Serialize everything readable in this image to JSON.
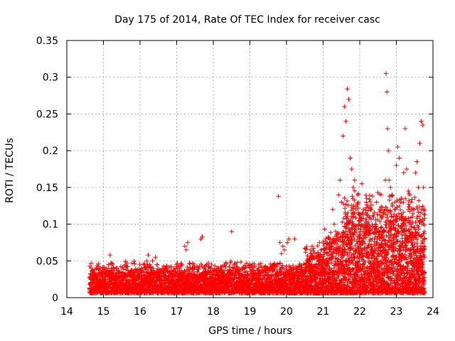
{
  "chart_data": {
    "type": "scatter",
    "title": "Day 175 of 2014, Rate Of TEC Index for receiver casc",
    "xlabel": "GPS time / hours",
    "ylabel": "ROTI / TECUs",
    "xlim": [
      14,
      24
    ],
    "ylim": [
      0,
      0.35
    ],
    "x_ticks": [
      14,
      15,
      16,
      17,
      18,
      19,
      20,
      21,
      22,
      23,
      24
    ],
    "x_tick_labels": [
      "14",
      "15",
      "16",
      "17",
      "18",
      "19",
      "20",
      "21",
      "22",
      "23",
      "24"
    ],
    "y_ticks": [
      0,
      0.05,
      0.1,
      0.15,
      0.2,
      0.25,
      0.3,
      0.35
    ],
    "y_tick_labels": [
      "0",
      "0.05",
      "0.1",
      "0.15",
      "0.2",
      "0.25",
      "0.3",
      "0.35"
    ],
    "grid": true,
    "marker": "plus",
    "color": "#ff0000",
    "series": [
      {
        "name": "ROTI",
        "points": [
          [
            14.62,
            0.012
          ],
          [
            14.66,
            0.018
          ],
          [
            14.7,
            0.025
          ],
          [
            14.74,
            0.03
          ],
          [
            14.78,
            0.022
          ],
          [
            14.82,
            0.04
          ],
          [
            14.86,
            0.046
          ],
          [
            14.9,
            0.03
          ],
          [
            14.94,
            0.02
          ],
          [
            14.98,
            0.015
          ],
          [
            15.02,
            0.025
          ],
          [
            15.06,
            0.035
          ],
          [
            15.1,
            0.02
          ],
          [
            15.14,
            0.045
          ],
          [
            15.18,
            0.058
          ],
          [
            15.22,
            0.04
          ],
          [
            15.26,
            0.03
          ],
          [
            15.3,
            0.02
          ],
          [
            15.34,
            0.015
          ],
          [
            15.38,
            0.012
          ],
          [
            15.42,
            0.01
          ],
          [
            15.46,
            0.02
          ],
          [
            15.5,
            0.018
          ],
          [
            15.54,
            0.025
          ],
          [
            15.58,
            0.03
          ],
          [
            15.62,
            0.016
          ],
          [
            15.66,
            0.012
          ],
          [
            15.7,
            0.02
          ],
          [
            15.74,
            0.015
          ],
          [
            15.78,
            0.01
          ],
          [
            15.82,
            0.012
          ],
          [
            15.86,
            0.018
          ],
          [
            15.9,
            0.025
          ],
          [
            15.94,
            0.03
          ],
          [
            15.98,
            0.028
          ],
          [
            16.02,
            0.025
          ],
          [
            16.06,
            0.038
          ],
          [
            16.1,
            0.045
          ],
          [
            16.14,
            0.03
          ],
          [
            16.18,
            0.05
          ],
          [
            16.22,
            0.058
          ],
          [
            16.26,
            0.045
          ],
          [
            16.3,
            0.04
          ],
          [
            16.34,
            0.05
          ],
          [
            16.38,
            0.035
          ],
          [
            16.42,
            0.055
          ],
          [
            16.46,
            0.045
          ],
          [
            16.5,
            0.03
          ],
          [
            16.54,
            0.025
          ],
          [
            16.58,
            0.035
          ],
          [
            16.62,
            0.04
          ],
          [
            16.66,
            0.03
          ],
          [
            16.7,
            0.02
          ],
          [
            16.74,
            0.025
          ],
          [
            16.78,
            0.03
          ],
          [
            16.82,
            0.035
          ],
          [
            16.86,
            0.02
          ],
          [
            16.9,
            0.015
          ],
          [
            16.94,
            0.02
          ],
          [
            16.98,
            0.025
          ],
          [
            17.02,
            0.03
          ],
          [
            17.06,
            0.02
          ],
          [
            17.1,
            0.015
          ],
          [
            17.14,
            0.02
          ],
          [
            17.18,
            0.025
          ],
          [
            17.22,
            0.07
          ],
          [
            17.26,
            0.065
          ],
          [
            17.3,
            0.075
          ],
          [
            17.34,
            0.03
          ],
          [
            17.38,
            0.028
          ],
          [
            17.42,
            0.035
          ],
          [
            17.46,
            0.025
          ],
          [
            17.5,
            0.03
          ],
          [
            17.54,
            0.02
          ],
          [
            17.58,
            0.015
          ],
          [
            17.62,
            0.025
          ],
          [
            17.66,
            0.08
          ],
          [
            17.7,
            0.083
          ],
          [
            17.74,
            0.04
          ],
          [
            17.78,
            0.03
          ],
          [
            17.82,
            0.045
          ],
          [
            17.86,
            0.035
          ],
          [
            17.9,
            0.025
          ],
          [
            17.94,
            0.02
          ],
          [
            17.98,
            0.015
          ],
          [
            18.02,
            0.02
          ],
          [
            18.06,
            0.025
          ],
          [
            18.1,
            0.03
          ],
          [
            18.14,
            0.02
          ],
          [
            18.18,
            0.015
          ],
          [
            18.22,
            0.025
          ],
          [
            18.26,
            0.032
          ],
          [
            18.3,
            0.03
          ],
          [
            18.34,
            0.02
          ],
          [
            18.38,
            0.015
          ],
          [
            18.42,
            0.01
          ],
          [
            18.46,
            0.02
          ],
          [
            18.5,
            0.09
          ],
          [
            18.54,
            0.025
          ],
          [
            18.58,
            0.03
          ],
          [
            18.62,
            0.02
          ],
          [
            18.66,
            0.015
          ],
          [
            18.7,
            0.028
          ],
          [
            18.74,
            0.03
          ],
          [
            18.78,
            0.02
          ],
          [
            18.82,
            0.01
          ],
          [
            18.86,
            0.015
          ],
          [
            18.9,
            0.025
          ],
          [
            18.94,
            0.03
          ],
          [
            18.98,
            0.02
          ],
          [
            19.02,
            0.015
          ],
          [
            19.06,
            0.01
          ],
          [
            19.1,
            0.012
          ],
          [
            19.14,
            0.018
          ],
          [
            19.18,
            0.025
          ],
          [
            19.22,
            0.02
          ],
          [
            19.26,
            0.015
          ],
          [
            19.3,
            0.01
          ],
          [
            19.34,
            0.02
          ],
          [
            19.38,
            0.035
          ],
          [
            19.42,
            0.042
          ],
          [
            19.46,
            0.03
          ],
          [
            19.5,
            0.025
          ],
          [
            19.54,
            0.02
          ],
          [
            19.58,
            0.03
          ],
          [
            19.62,
            0.035
          ],
          [
            19.66,
            0.025
          ],
          [
            19.7,
            0.02
          ],
          [
            19.74,
            0.03
          ],
          [
            19.78,
            0.138
          ],
          [
            19.82,
            0.075
          ],
          [
            19.86,
            0.06
          ],
          [
            19.9,
            0.07
          ],
          [
            19.94,
            0.065
          ],
          [
            19.98,
            0.03
          ],
          [
            20.02,
            0.075
          ],
          [
            20.06,
            0.08
          ],
          [
            20.1,
            0.025
          ],
          [
            20.14,
            0.03
          ],
          [
            20.18,
            0.02
          ],
          [
            20.22,
            0.08
          ],
          [
            20.26,
            0.035
          ],
          [
            20.3,
            0.03
          ],
          [
            20.34,
            0.025
          ],
          [
            20.38,
            0.02
          ],
          [
            20.42,
            0.03
          ],
          [
            20.46,
            0.035
          ],
          [
            20.5,
            0.045
          ],
          [
            20.54,
            0.04
          ],
          [
            20.58,
            0.03
          ],
          [
            20.62,
            0.05
          ],
          [
            20.66,
            0.065
          ],
          [
            20.7,
            0.07
          ],
          [
            20.74,
            0.055
          ],
          [
            20.78,
            0.045
          ],
          [
            20.82,
            0.04
          ],
          [
            20.86,
            0.06
          ],
          [
            20.9,
            0.075
          ],
          [
            20.94,
            0.065
          ],
          [
            20.98,
            0.05
          ],
          [
            21.02,
            0.04
          ],
          [
            21.06,
            0.045
          ],
          [
            21.1,
            0.06
          ],
          [
            21.14,
            0.05
          ],
          [
            21.18,
            0.07
          ],
          [
            21.22,
            0.075
          ],
          [
            21.26,
            0.12
          ],
          [
            21.3,
            0.1
          ],
          [
            21.34,
            0.09
          ],
          [
            21.38,
            0.065
          ],
          [
            21.42,
            0.14
          ],
          [
            21.46,
            0.16
          ],
          [
            21.5,
            0.13
          ],
          [
            21.54,
            0.22
          ],
          [
            21.58,
            0.26
          ],
          [
            21.62,
            0.24
          ],
          [
            21.66,
            0.284
          ],
          [
            21.7,
            0.27
          ],
          [
            21.74,
            0.19
          ],
          [
            21.78,
            0.175
          ],
          [
            21.82,
            0.15
          ],
          [
            21.86,
            0.16
          ],
          [
            21.9,
            0.12
          ],
          [
            21.94,
            0.14
          ],
          [
            21.98,
            0.1
          ],
          [
            22.02,
            0.09
          ],
          [
            22.06,
            0.155
          ],
          [
            22.1,
            0.12
          ],
          [
            22.14,
            0.1
          ],
          [
            22.18,
            0.13
          ],
          [
            22.22,
            0.1
          ],
          [
            22.26,
            0.09
          ],
          [
            22.3,
            0.12
          ],
          [
            22.34,
            0.08
          ],
          [
            22.38,
            0.11
          ],
          [
            22.42,
            0.1
          ],
          [
            22.46,
            0.13
          ],
          [
            22.5,
            0.09
          ],
          [
            22.54,
            0.12
          ],
          [
            22.58,
            0.14
          ],
          [
            22.62,
            0.11
          ],
          [
            22.66,
            0.12
          ],
          [
            22.7,
            0.16
          ],
          [
            22.72,
            0.305
          ],
          [
            22.74,
            0.28
          ],
          [
            22.76,
            0.23
          ],
          [
            22.78,
            0.2
          ],
          [
            22.8,
            0.16
          ],
          [
            22.84,
            0.15
          ],
          [
            22.88,
            0.14
          ],
          [
            22.92,
            0.1
          ],
          [
            22.96,
            0.12
          ],
          [
            23.0,
            0.18
          ],
          [
            23.04,
            0.205
          ],
          [
            23.08,
            0.19
          ],
          [
            23.12,
            0.13
          ],
          [
            23.16,
            0.11
          ],
          [
            23.2,
            0.17
          ],
          [
            23.24,
            0.23
          ],
          [
            23.28,
            0.175
          ],
          [
            23.32,
            0.12
          ],
          [
            23.36,
            0.14
          ],
          [
            23.4,
            0.13
          ],
          [
            23.44,
            0.11
          ],
          [
            23.48,
            0.12
          ],
          [
            23.52,
            0.17
          ],
          [
            23.56,
            0.185
          ],
          [
            23.6,
            0.15
          ],
          [
            23.64,
            0.21
          ],
          [
            23.68,
            0.24
          ],
          [
            23.72,
            0.235
          ],
          [
            23.74,
            0.15
          ],
          [
            23.76,
            0.12
          ]
        ]
      }
    ]
  }
}
